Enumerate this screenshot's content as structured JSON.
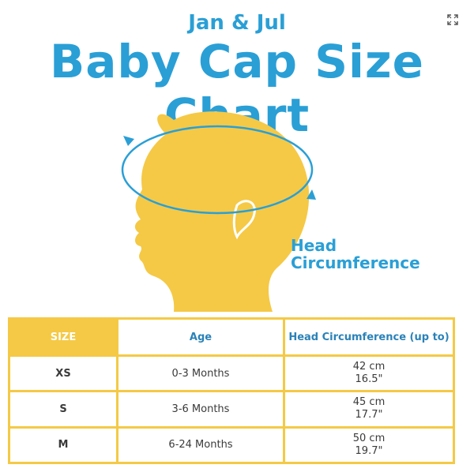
{
  "header": {
    "brand": "Jan & Jul",
    "title": "Baby Cap Size Chart"
  },
  "illustration": {
    "label_line1": "Head",
    "label_line2": "Circumference"
  },
  "table": {
    "headers": [
      "SIZE",
      "Age",
      "Head Circumference (up to)"
    ],
    "rows": [
      {
        "size": "XS",
        "age": "0-3 Months",
        "cm": "42 cm",
        "inch": "16.5\""
      },
      {
        "size": "S",
        "age": "3-6 Months",
        "cm": "45 cm",
        "inch": "17.7\""
      },
      {
        "size": "M",
        "age": "6-24 Months",
        "cm": "50 cm",
        "inch": "19.7\""
      }
    ]
  },
  "colors": {
    "accent_blue": "#2a9fd6",
    "accent_yellow": "#f5c945"
  },
  "icons": {
    "expand": "expand-icon"
  }
}
